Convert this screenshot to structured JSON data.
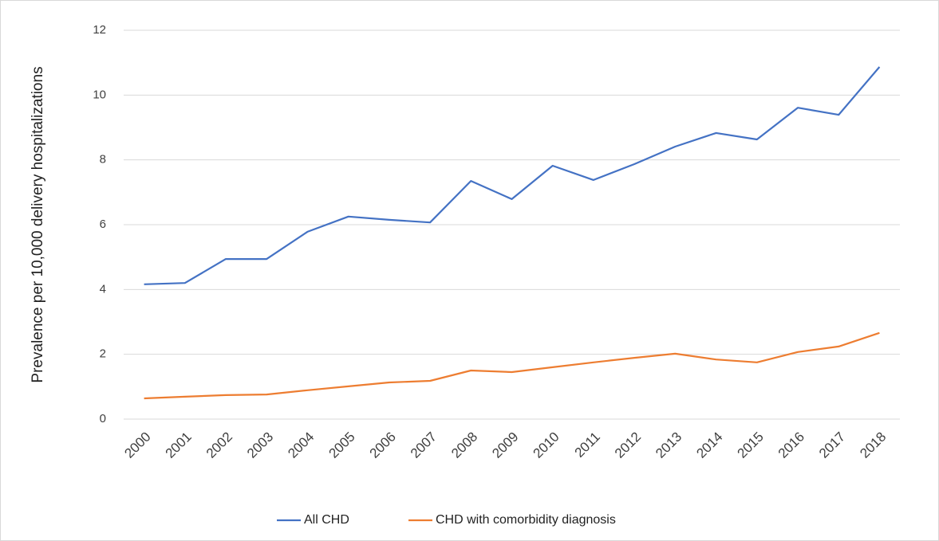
{
  "chart_data": {
    "type": "line",
    "y_label": "Prevalence per 10,000 delivery hospitalizations",
    "categories": [
      "2000",
      "2001",
      "2002",
      "2003",
      "2004",
      "2005",
      "2006",
      "2007",
      "2008",
      "2009",
      "2010",
      "2011",
      "2012",
      "2013",
      "2014",
      "2015",
      "2016",
      "2017",
      "2018"
    ],
    "series": [
      {
        "name": "All CHD",
        "color": "#4472c4",
        "values": [
          4.16,
          4.2,
          4.94,
          4.94,
          5.78,
          6.25,
          6.15,
          6.07,
          7.35,
          6.79,
          7.82,
          7.38,
          7.87,
          8.41,
          8.83,
          8.63,
          9.61,
          9.39,
          10.87
        ]
      },
      {
        "name": "CHD with comorbidity diagnosis",
        "color": "#ed7d31",
        "values": [
          0.64,
          0.69,
          0.74,
          0.76,
          0.89,
          1.01,
          1.13,
          1.18,
          1.5,
          1.45,
          1.6,
          1.75,
          1.89,
          2.02,
          1.84,
          1.75,
          2.07,
          2.24,
          2.66
        ]
      }
    ],
    "ylim": [
      0,
      12
    ],
    "yticks": [
      0,
      2,
      4,
      6,
      8,
      10,
      12
    ],
    "grid": true,
    "legend": "bottom"
  }
}
